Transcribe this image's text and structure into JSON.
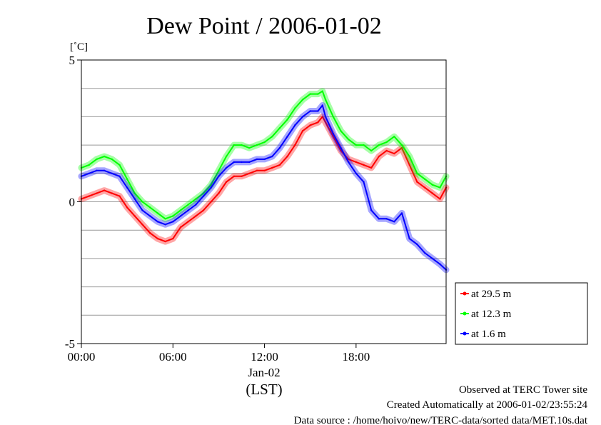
{
  "title": "Dew Point / 2006-01-02",
  "chart_data": {
    "type": "line",
    "title": "Dew Point / 2006-01-02",
    "ylabel": "[˚C]",
    "xlabel": "(LST)",
    "date_label": "Jan-02",
    "ylim": [
      -5,
      5
    ],
    "xlim": [
      0,
      23.9
    ],
    "x_unit": "hours (LST)",
    "y_ticks": [
      {
        "value": 5,
        "label": "5"
      },
      {
        "value": 0,
        "label": "0"
      },
      {
        "value": -5,
        "label": "-5"
      }
    ],
    "x_ticks": [
      {
        "value": 0,
        "label": "00:00"
      },
      {
        "value": 6,
        "label": "06:00"
      },
      {
        "value": 12,
        "label": "12:00"
      },
      {
        "value": 18,
        "label": "18:00"
      }
    ],
    "grid": true,
    "legend_position": "right-bottom",
    "x": [
      0,
      0.5,
      1,
      1.5,
      2,
      2.5,
      3,
      3.5,
      4,
      4.5,
      5,
      5.5,
      6,
      6.5,
      7,
      7.5,
      8,
      8.5,
      9,
      9.5,
      10,
      10.5,
      11,
      11.5,
      12,
      12.5,
      13,
      13.5,
      14,
      14.5,
      15,
      15.5,
      15.8,
      16,
      16.5,
      17,
      17.5,
      18,
      18.5,
      19,
      19.5,
      20,
      20.5,
      21,
      21.5,
      22,
      22.5,
      23,
      23.5,
      23.9
    ],
    "series": [
      {
        "name": "at 29.5 m",
        "color": "#ff0000",
        "values": [
          0.1,
          0.2,
          0.3,
          0.4,
          0.3,
          0.2,
          -0.2,
          -0.5,
          -0.8,
          -1.1,
          -1.3,
          -1.4,
          -1.3,
          -0.9,
          -0.7,
          -0.5,
          -0.3,
          0.0,
          0.3,
          0.7,
          0.9,
          0.9,
          1.0,
          1.1,
          1.1,
          1.2,
          1.3,
          1.6,
          2.0,
          2.5,
          2.7,
          2.8,
          3.0,
          2.8,
          2.3,
          1.8,
          1.5,
          1.4,
          1.3,
          1.2,
          1.6,
          1.8,
          1.7,
          1.9,
          1.3,
          0.7,
          0.5,
          0.3,
          0.1,
          0.5
        ]
      },
      {
        "name": "at 12.3 m",
        "color": "#00ff00",
        "values": [
          1.2,
          1.3,
          1.5,
          1.6,
          1.5,
          1.3,
          0.8,
          0.3,
          0.0,
          -0.2,
          -0.4,
          -0.6,
          -0.5,
          -0.3,
          -0.1,
          0.1,
          0.3,
          0.6,
          1.1,
          1.6,
          2.0,
          2.0,
          1.9,
          2.0,
          2.1,
          2.3,
          2.6,
          2.9,
          3.3,
          3.6,
          3.8,
          3.8,
          3.9,
          3.6,
          3.0,
          2.5,
          2.2,
          2.0,
          2.0,
          1.8,
          2.0,
          2.1,
          2.3,
          2.0,
          1.6,
          1.0,
          0.8,
          0.6,
          0.5,
          0.9
        ]
      },
      {
        "name": "at 1.6 m",
        "color": "#0000ff",
        "values": [
          0.9,
          1.0,
          1.1,
          1.1,
          1.0,
          0.9,
          0.5,
          0.1,
          -0.3,
          -0.5,
          -0.7,
          -0.8,
          -0.7,
          -0.5,
          -0.3,
          -0.1,
          0.2,
          0.5,
          0.9,
          1.2,
          1.4,
          1.4,
          1.4,
          1.5,
          1.5,
          1.6,
          1.9,
          2.3,
          2.7,
          3.0,
          3.2,
          3.2,
          3.4,
          3.0,
          2.4,
          1.9,
          1.4,
          1.0,
          0.7,
          -0.3,
          -0.6,
          -0.6,
          -0.7,
          -0.4,
          -1.3,
          -1.5,
          -1.8,
          -2.0,
          -2.2,
          -2.4
        ]
      }
    ]
  },
  "footer": {
    "observed": "Observed at TERC Tower site",
    "created": "Created Automatically at 2006-01-02/23:55:24",
    "source": "Data source : /home/hoivo/new/TERC-data/sorted  data/MET.10s.dat"
  }
}
